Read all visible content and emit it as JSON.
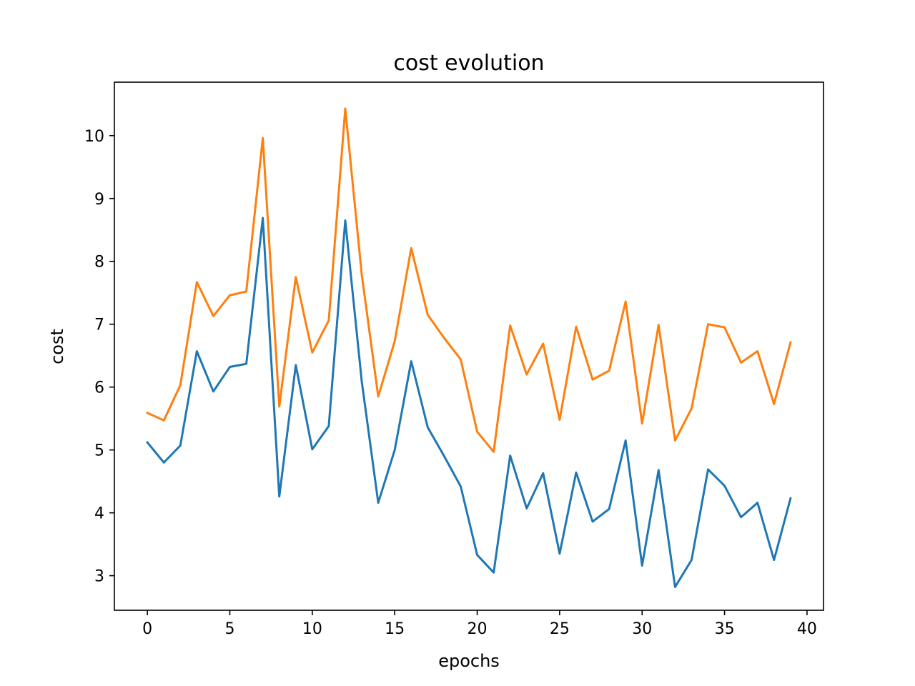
{
  "chart_data": {
    "type": "line",
    "title": "cost evolution",
    "xlabel": "epochs",
    "ylabel": "cost",
    "xlim": [
      -2,
      41
    ],
    "ylim": [
      2.45,
      10.85
    ],
    "xticks": [
      0,
      5,
      10,
      15,
      20,
      25,
      30,
      35,
      40
    ],
    "yticks": [
      3,
      4,
      5,
      6,
      7,
      8,
      9,
      10
    ],
    "grid": false,
    "x": [
      0,
      1,
      2,
      3,
      4,
      5,
      6,
      7,
      8,
      9,
      10,
      11,
      12,
      13,
      14,
      15,
      16,
      17,
      18,
      19,
      20,
      21,
      22,
      23,
      24,
      25,
      26,
      27,
      28,
      29,
      30,
      31,
      32,
      33,
      34,
      35,
      36,
      37,
      38,
      39
    ],
    "series": [
      {
        "color": "#1f77b4",
        "values": [
          5.12,
          4.8,
          5.07,
          6.57,
          5.93,
          6.32,
          6.37,
          8.69,
          4.26,
          6.35,
          5.01,
          5.38,
          8.65,
          6.09,
          4.16,
          5.0,
          6.41,
          5.36,
          4.9,
          4.42,
          3.33,
          3.05,
          4.91,
          4.07,
          4.63,
          3.35,
          4.64,
          3.86,
          4.06,
          5.15,
          3.16,
          4.68,
          2.82,
          3.25,
          4.69,
          4.43,
          3.93,
          4.16,
          3.25,
          4.23
        ]
      },
      {
        "color": "#ff7f0e",
        "values": [
          5.59,
          5.47,
          6.03,
          7.67,
          7.13,
          7.46,
          7.52,
          9.96,
          5.69,
          7.75,
          6.55,
          7.06,
          10.43,
          7.79,
          5.85,
          6.73,
          8.21,
          7.15,
          6.78,
          6.44,
          5.29,
          4.97,
          6.98,
          6.2,
          6.69,
          5.48,
          6.96,
          6.12,
          6.26,
          7.36,
          5.42,
          6.99,
          5.15,
          5.66,
          7.0,
          6.95,
          6.39,
          6.57,
          5.73,
          6.71
        ]
      }
    ]
  }
}
